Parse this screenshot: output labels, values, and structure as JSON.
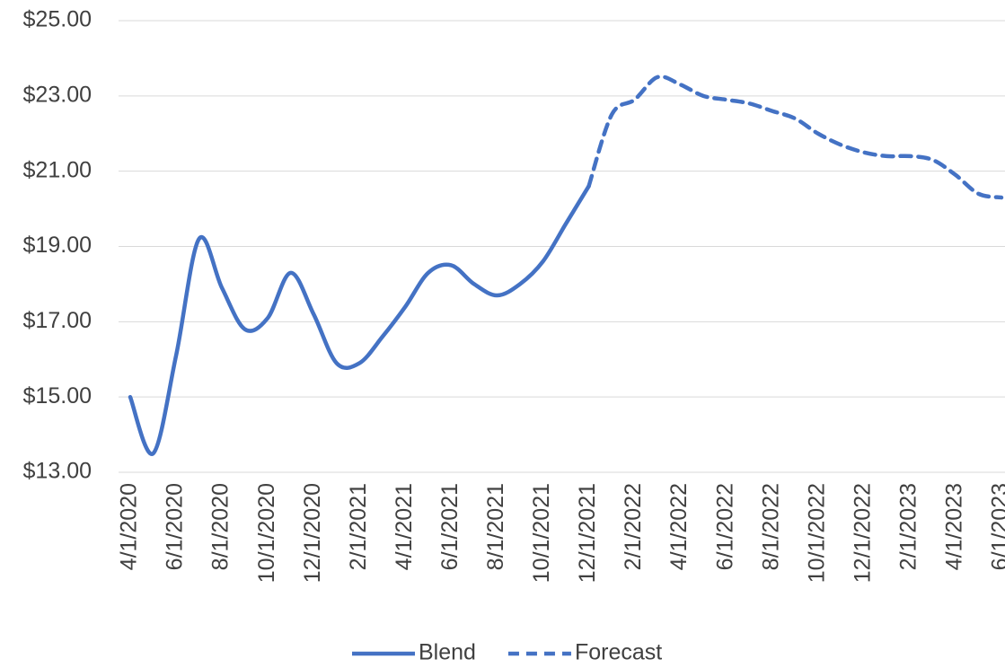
{
  "chart_data": {
    "type": "line",
    "categories": [
      "4/1/2020",
      null,
      "6/1/2020",
      null,
      "8/1/2020",
      null,
      "10/1/2020",
      null,
      "12/1/2020",
      null,
      "2/1/2021",
      null,
      "4/1/2021",
      null,
      "6/1/2021",
      null,
      "8/1/2021",
      null,
      "10/1/2021",
      null,
      "12/1/2021",
      null,
      "2/1/2022",
      null,
      "4/1/2022",
      null,
      "6/1/2022",
      null,
      "8/1/2022",
      null,
      "10/1/2022",
      null,
      "12/1/2022",
      null,
      "2/1/2023",
      null,
      "4/1/2023",
      null,
      "6/1/2023"
    ],
    "series": [
      {
        "name": "Blend",
        "color": "#4472c4",
        "dashed": false,
        "values": [
          15.0,
          13.5,
          16.1,
          19.2,
          17.9,
          16.8,
          17.1,
          18.3,
          17.2,
          15.9,
          15.9,
          16.6,
          17.4,
          18.3,
          18.5,
          18.0,
          17.7,
          18.0,
          18.6,
          19.6,
          20.6,
          null,
          null,
          null,
          null,
          null,
          null,
          null,
          null,
          null,
          null,
          null,
          null,
          null,
          null,
          null,
          null,
          null,
          null
        ]
      },
      {
        "name": "Forecast",
        "color": "#4472c4",
        "dashed": true,
        "values": [
          null,
          null,
          null,
          null,
          null,
          null,
          null,
          null,
          null,
          null,
          null,
          null,
          null,
          null,
          null,
          null,
          null,
          null,
          null,
          null,
          20.6,
          22.5,
          22.9,
          23.5,
          23.3,
          23.0,
          22.9,
          22.8,
          22.6,
          22.4,
          22.0,
          21.7,
          21.5,
          21.4,
          21.4,
          21.3,
          20.9,
          20.4,
          20.3
        ]
      }
    ],
    "ylim": [
      13,
      25
    ],
    "yticks": [
      {
        "value": 13,
        "label": "$13.00"
      },
      {
        "value": 15,
        "label": "$15.00"
      },
      {
        "value": 17,
        "label": "$17.00"
      },
      {
        "value": 19,
        "label": "$19.00"
      },
      {
        "value": 21,
        "label": "$21.00"
      },
      {
        "value": 23,
        "label": "$23.00"
      },
      {
        "value": 25,
        "label": "$25.00"
      }
    ],
    "grid": true,
    "legend": "bottom"
  }
}
